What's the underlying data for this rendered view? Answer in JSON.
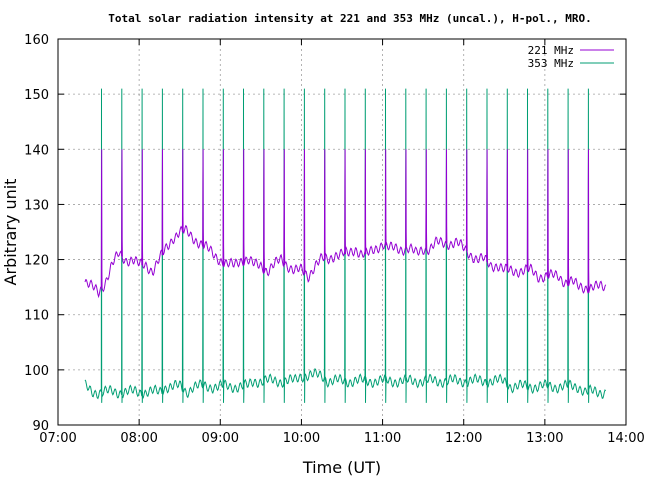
{
  "chart_data": {
    "type": "line",
    "title": "Total solar radiation intensity at 221 and 353 MHz (uncal.), H-pol., MRO.",
    "xlabel": "Time (UT)",
    "ylabel": "Arbitrary unit",
    "x_ticks": [
      "07:00",
      "08:00",
      "09:00",
      "10:00",
      "11:00",
      "12:00",
      "13:00",
      "14:00"
    ],
    "y_ticks": [
      "90",
      "100",
      "110",
      "120",
      "130",
      "140",
      "150",
      "160"
    ],
    "xlim": [
      "07:00",
      "14:00"
    ],
    "ylim": [
      90,
      160
    ],
    "grid": true,
    "legend_position": "top-right",
    "calibration_spikes": {
      "start": "07:32",
      "interval_minutes": 15,
      "count": 25,
      "series_221_peak": 140,
      "series_353_peak": 151,
      "series_353_dip": 94
    },
    "series": [
      {
        "name": "221 MHz",
        "color": "#9400d3",
        "x": [
          "07:20",
          "07:25",
          "07:30",
          "07:35",
          "07:40",
          "07:45",
          "07:50",
          "07:55",
          "08:00",
          "08:05",
          "08:10",
          "08:15",
          "08:20",
          "08:25",
          "08:30",
          "08:35",
          "08:40",
          "08:45",
          "08:50",
          "08:55",
          "09:00",
          "09:05",
          "09:10",
          "09:15",
          "09:20",
          "09:25",
          "09:30",
          "09:35",
          "09:40",
          "09:45",
          "09:50",
          "09:55",
          "10:00",
          "10:05",
          "10:10",
          "10:15",
          "10:20",
          "10:25",
          "10:30",
          "10:35",
          "10:40",
          "10:45",
          "10:50",
          "10:55",
          "11:00",
          "11:05",
          "11:10",
          "11:15",
          "11:20",
          "11:25",
          "11:30",
          "11:35",
          "11:40",
          "11:45",
          "11:50",
          "11:55",
          "12:00",
          "12:05",
          "12:10",
          "12:15",
          "12:20",
          "12:25",
          "12:30",
          "12:35",
          "12:40",
          "12:45",
          "12:50",
          "12:55",
          "13:00",
          "13:05",
          "13:10",
          "13:15",
          "13:20",
          "13:25",
          "13:30",
          "13:35",
          "13:40",
          "13:45"
        ],
        "values": [
          116,
          115,
          114,
          116,
          119,
          121,
          120,
          120,
          119,
          119,
          118,
          120,
          122,
          124,
          125,
          125,
          124,
          123,
          122,
          121,
          120,
          119,
          119,
          120,
          120,
          119,
          119,
          118,
          119,
          120,
          119,
          118,
          118,
          117,
          119,
          120,
          120,
          121,
          121,
          121,
          122,
          121,
          121,
          122,
          123,
          122,
          122,
          122,
          122,
          121,
          122,
          122,
          123,
          123,
          123,
          123,
          122,
          121,
          120,
          120,
          119,
          119,
          118,
          118,
          118,
          118,
          118,
          117,
          117,
          117,
          117,
          116,
          116,
          115,
          115,
          115,
          115,
          115
        ]
      },
      {
        "name": "353 MHz",
        "color": "#009e73",
        "x": [
          "07:20",
          "07:25",
          "07:30",
          "07:35",
          "07:40",
          "07:45",
          "07:50",
          "07:55",
          "08:00",
          "08:05",
          "08:10",
          "08:15",
          "08:20",
          "08:25",
          "08:30",
          "08:35",
          "08:40",
          "08:45",
          "08:50",
          "08:55",
          "09:00",
          "09:05",
          "09:10",
          "09:15",
          "09:20",
          "09:25",
          "09:30",
          "09:35",
          "09:40",
          "09:45",
          "09:50",
          "09:55",
          "10:00",
          "10:05",
          "10:10",
          "10:15",
          "10:20",
          "10:25",
          "10:30",
          "10:35",
          "10:40",
          "10:45",
          "10:50",
          "10:55",
          "11:00",
          "11:05",
          "11:10",
          "11:15",
          "11:20",
          "11:25",
          "11:30",
          "11:35",
          "11:40",
          "11:45",
          "11:50",
          "11:55",
          "12:00",
          "12:05",
          "12:10",
          "12:15",
          "12:20",
          "12:25",
          "12:30",
          "12:35",
          "12:40",
          "12:45",
          "12:50",
          "12:55",
          "13:00",
          "13:05",
          "13:10",
          "13:15",
          "13:20",
          "13:25",
          "13:30",
          "13:35",
          "13:40",
          "13:45"
        ],
        "values": [
          97,
          96,
          96,
          96,
          96,
          96,
          96,
          96,
          96,
          96,
          96,
          96,
          97,
          97,
          97,
          96,
          97,
          97,
          97,
          97,
          97,
          97,
          97,
          97,
          97,
          98,
          98,
          98,
          98,
          98,
          98,
          98,
          99,
          99,
          99,
          99,
          98,
          98,
          98,
          98,
          98,
          98,
          98,
          98,
          98,
          98,
          98,
          98,
          98,
          98,
          98,
          98,
          98,
          98,
          98,
          98,
          98,
          98,
          98,
          98,
          98,
          98,
          98,
          97,
          97,
          97,
          97,
          97,
          97,
          97,
          97,
          97,
          97,
          97,
          96,
          96,
          96,
          96
        ]
      }
    ]
  }
}
